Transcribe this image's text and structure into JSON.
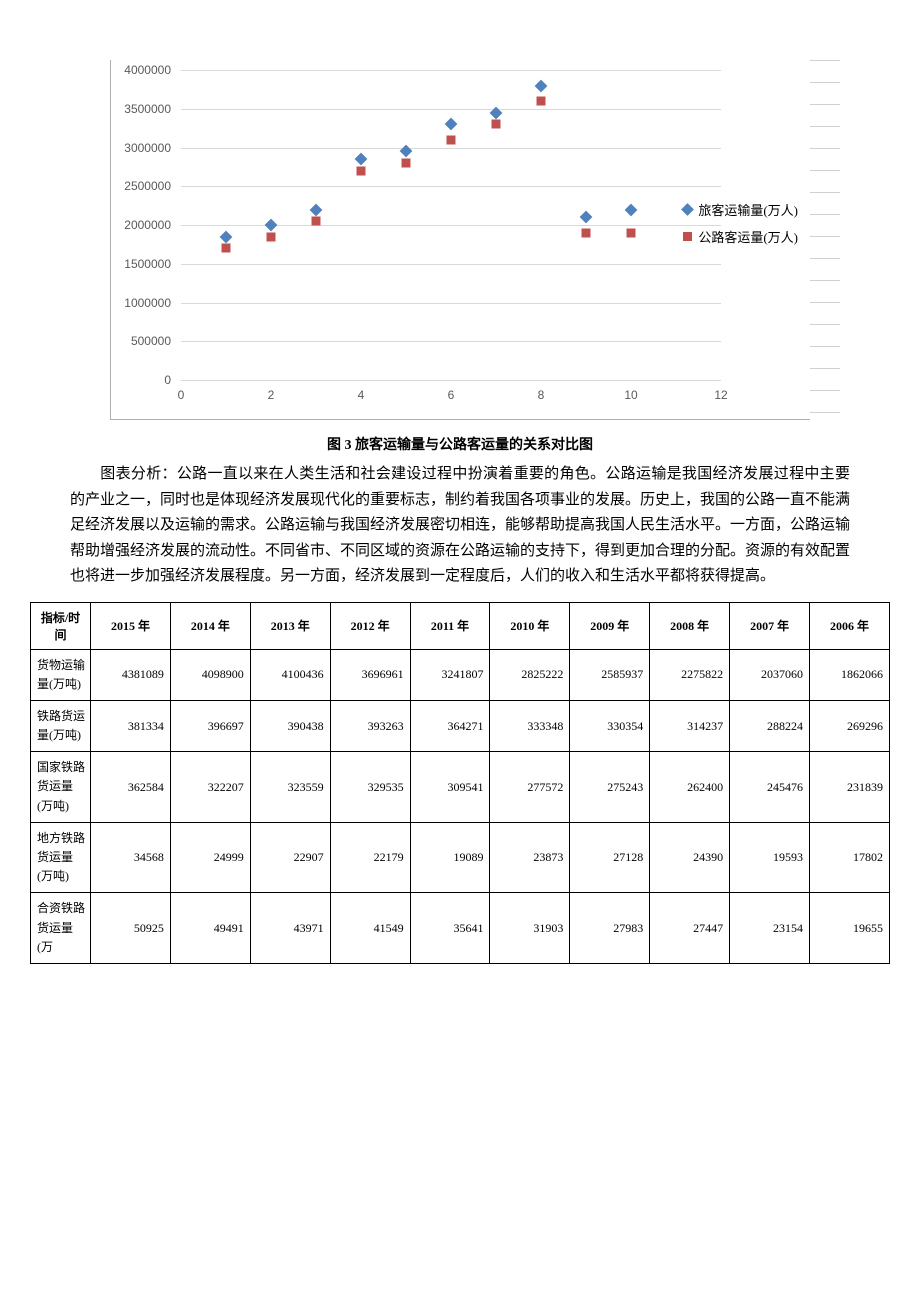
{
  "chart": {
    "type": "scatter",
    "caption": "图 3  旅客运输量与公路客运量的关系对比图",
    "background_color": "#ffffff",
    "grid_color": "#d9d9d9",
    "axis_color": "#b0b0b0",
    "label_color": "#595959",
    "label_fontsize": 12,
    "xlim": [
      0,
      12
    ],
    "ylim": [
      0,
      4000000
    ],
    "x_ticks": [
      0,
      2,
      4,
      6,
      8,
      10,
      12
    ],
    "y_ticks": [
      0,
      500000,
      1000000,
      1500000,
      2000000,
      2500000,
      3000000,
      3500000,
      4000000
    ],
    "series": [
      {
        "name": "旅客运输量(万人)",
        "color": "#4f81bd",
        "marker": "diamond",
        "marker_size": 9,
        "points": [
          {
            "x": 1,
            "y": 1850000
          },
          {
            "x": 2,
            "y": 2000000
          },
          {
            "x": 3,
            "y": 2200000
          },
          {
            "x": 4,
            "y": 2850000
          },
          {
            "x": 5,
            "y": 2950000
          },
          {
            "x": 6,
            "y": 3300000
          },
          {
            "x": 7,
            "y": 3450000
          },
          {
            "x": 8,
            "y": 3800000
          },
          {
            "x": 9,
            "y": 2100000
          },
          {
            "x": 10,
            "y": 2200000
          }
        ]
      },
      {
        "name": "公路客运量(万人)",
        "color": "#c0504d",
        "marker": "square",
        "marker_size": 9,
        "points": [
          {
            "x": 1,
            "y": 1700000
          },
          {
            "x": 2,
            "y": 1850000
          },
          {
            "x": 3,
            "y": 2050000
          },
          {
            "x": 4,
            "y": 2700000
          },
          {
            "x": 5,
            "y": 2800000
          },
          {
            "x": 6,
            "y": 3100000
          },
          {
            "x": 7,
            "y": 3300000
          },
          {
            "x": 8,
            "y": 3600000
          },
          {
            "x": 9,
            "y": 1900000
          },
          {
            "x": 10,
            "y": 1900000
          }
        ]
      }
    ]
  },
  "analysis_label": "图表分析：",
  "analysis_text": "公路一直以来在人类生活和社会建设过程中扮演着重要的角色。公路运输是我国经济发展过程中主要的产业之一，同时也是体现经济发展现代化的重要标志，制约着我国各项事业的发展。历史上，我国的公路一直不能满足经济发展以及运输的需求。公路运输与我国经济发展密切相连，能够帮助提高我国人民生活水平。一方面，公路运输帮助增强经济发展的流动性。不同省市、不同区域的资源在公路运输的支持下，得到更加合理的分配。资源的有效配置也将进一步加强经济发展程度。另一方面，经济发展到一定程度后，人们的收入和生活水平都将获得提高。",
  "table": {
    "header_label": "指标/时间",
    "columns": [
      "2015 年",
      "2014 年",
      "2013 年",
      "2012 年",
      "2011 年",
      "2010 年",
      "2009 年",
      "2008 年",
      "2007 年",
      "2006 年"
    ],
    "rows": [
      {
        "label": "货物运输量(万吨)",
        "values": [
          "4381089",
          "4098900",
          "4100436",
          "3696961",
          "3241807",
          "2825222",
          "2585937",
          "2275822",
          "2037060",
          "1862066"
        ]
      },
      {
        "label": "铁路货运量(万吨)",
        "values": [
          "381334",
          "396697",
          "390438",
          "393263",
          "364271",
          "333348",
          "330354",
          "314237",
          "288224",
          "269296"
        ]
      },
      {
        "label": "国家铁路货运量(万吨)",
        "values": [
          "362584",
          "322207",
          "323559",
          "329535",
          "309541",
          "277572",
          "275243",
          "262400",
          "245476",
          "231839"
        ]
      },
      {
        "label": "地方铁路货运量(万吨)",
        "values": [
          "34568",
          "24999",
          "22907",
          "22179",
          "19089",
          "23873",
          "27128",
          "24390",
          "19593",
          "17802"
        ]
      },
      {
        "label": "合资铁路货运量(万",
        "values": [
          "50925",
          "49491",
          "43971",
          "41549",
          "35641",
          "31903",
          "27983",
          "27447",
          "23154",
          "19655"
        ]
      }
    ]
  }
}
